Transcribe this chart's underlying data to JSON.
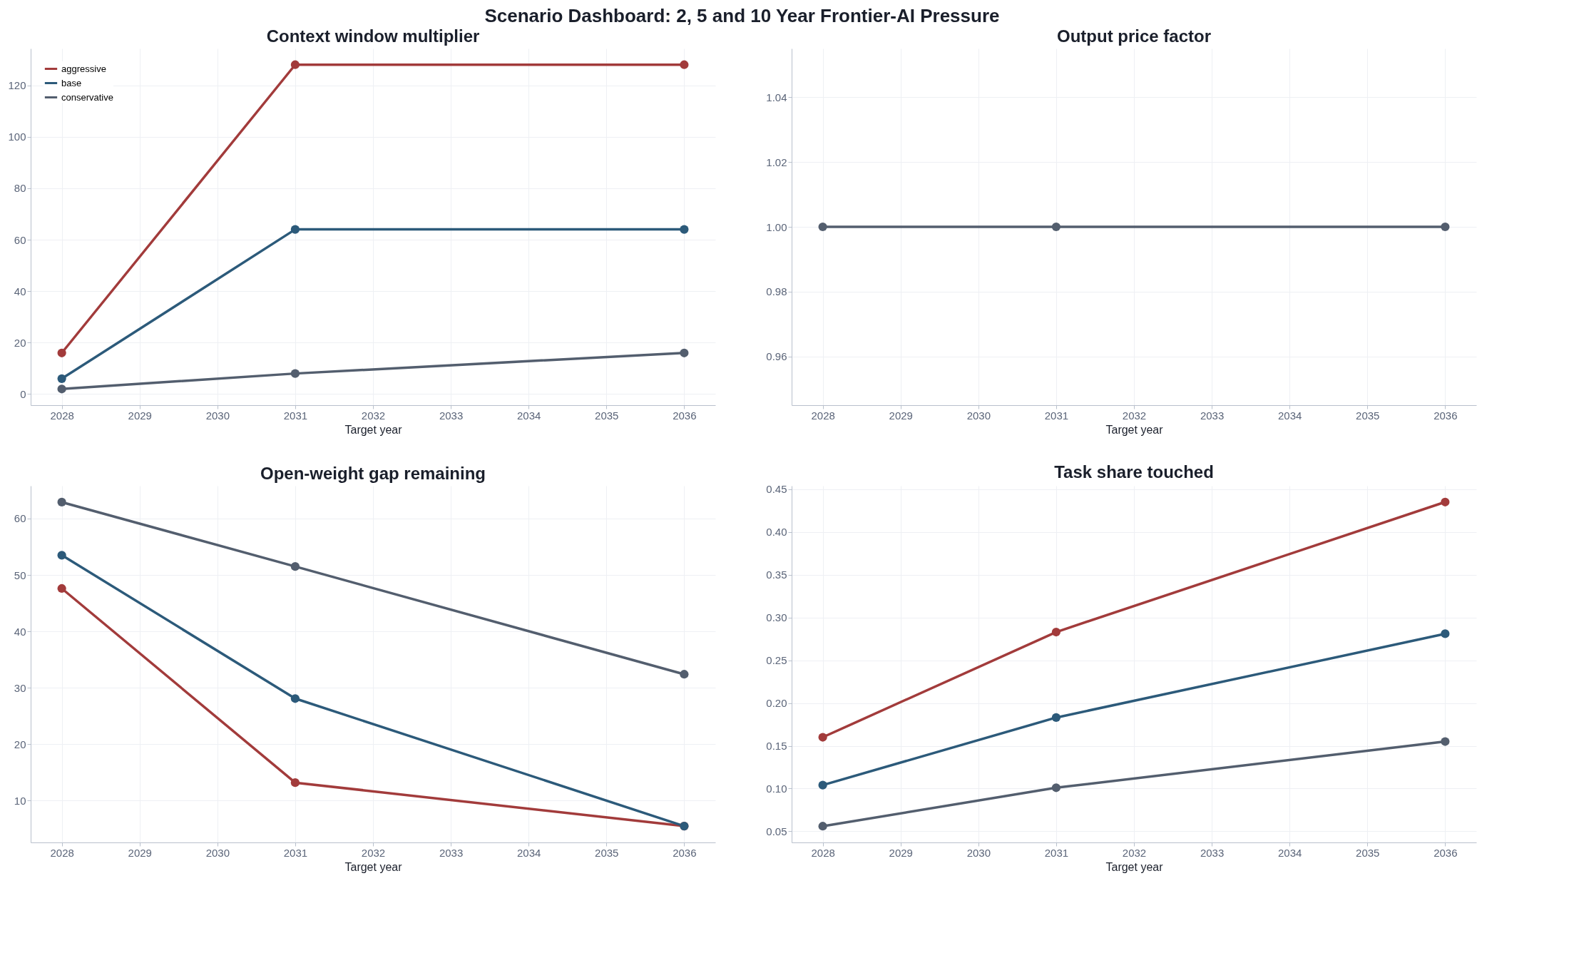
{
  "chart_data": [
    {
      "type": "line",
      "title": "Context window multiplier",
      "xlabel": "Target year",
      "x": [
        2028,
        2031,
        2036
      ],
      "xlim": [
        2027.6,
        2036.4
      ],
      "xticks": [
        2028,
        2029,
        2030,
        2031,
        2032,
        2033,
        2034,
        2035,
        2036
      ],
      "ylim": [
        -4.3,
        134.3
      ],
      "yticks": [
        0,
        20,
        40,
        60,
        80,
        100,
        120
      ],
      "grid": true,
      "legend": "top left",
      "marker": "circle",
      "line_style": "solid",
      "annotations": [
        "Scenario Dashboard: 2, 5 and 10 Year Frontier-AI Pressure"
      ],
      "series": [
        {
          "name": "aggressive",
          "color": "#a23b3b",
          "values": [
            16,
            128,
            128
          ]
        },
        {
          "name": "base",
          "color": "#2c5a7a",
          "values": [
            6,
            64,
            64
          ]
        },
        {
          "name": "conservative",
          "color": "#535e6e",
          "values": [
            2,
            8,
            16
          ]
        }
      ]
    },
    {
      "type": "line",
      "title": "Output price factor",
      "xlabel": "Target year",
      "x": [
        2028,
        2031,
        2036
      ],
      "xlim": [
        2027.6,
        2036.4
      ],
      "xticks": [
        2028,
        2029,
        2030,
        2031,
        2032,
        2033,
        2034,
        2035,
        2036
      ],
      "ylim": [
        0.945,
        1.055
      ],
      "yticks": [
        0.96,
        0.98,
        {
          "value": 1.0,
          "label": "1.00"
        },
        1.02,
        1.04
      ],
      "grid": true,
      "marker": "circle",
      "line_style": "solid",
      "series": [
        {
          "color": "#535e6e",
          "values": [
            1.0,
            1.0,
            1.0
          ]
        }
      ]
    },
    {
      "type": "line",
      "title": "Open-weight gap remaining",
      "xlabel": "Target year",
      "x": [
        2028,
        2031,
        2036
      ],
      "xlim": [
        2027.6,
        2036.4
      ],
      "xticks": [
        2028,
        2029,
        2030,
        2031,
        2032,
        2033,
        2034,
        2035,
        2036
      ],
      "ylim": [
        2.6,
        65.8
      ],
      "yticks": [
        10,
        20,
        30,
        40,
        50,
        60
      ],
      "grid": true,
      "marker": "circle",
      "line_style": "solid",
      "series": [
        {
          "color": "#a23b3b",
          "values": [
            47.6,
            13.2,
            5.5
          ]
        },
        {
          "color": "#2c5a7a",
          "values": [
            53.5,
            28.1,
            5.5
          ]
        },
        {
          "color": "#535e6e",
          "values": [
            62.9,
            51.5,
            32.4
          ]
        }
      ]
    },
    {
      "type": "line",
      "title": "Task share touched",
      "xlabel": "Target year",
      "x": [
        2028,
        2031,
        2036
      ],
      "xlim": [
        2027.6,
        2036.4
      ],
      "xticks": [
        2028,
        2029,
        2030,
        2031,
        2032,
        2033,
        2034,
        2035,
        2036
      ],
      "ylim": [
        0.037,
        0.454
      ],
      "yticks": [
        0.05,
        {
          "value": 0.1,
          "label": "0.10"
        },
        0.15,
        {
          "value": 0.2,
          "label": "0.20"
        },
        0.25,
        {
          "value": 0.3,
          "label": "0.30"
        },
        0.35,
        {
          "value": 0.4,
          "label": "0.40"
        },
        0.45
      ],
      "grid": true,
      "marker": "circle",
      "line_style": "solid",
      "series": [
        {
          "color": "#a23b3b",
          "values": [
            0.16,
            0.283,
            0.435
          ]
        },
        {
          "color": "#2c5a7a",
          "values": [
            0.104,
            0.183,
            0.281
          ]
        },
        {
          "color": "#535e6e",
          "values": [
            0.056,
            0.101,
            0.155
          ]
        }
      ]
    }
  ]
}
